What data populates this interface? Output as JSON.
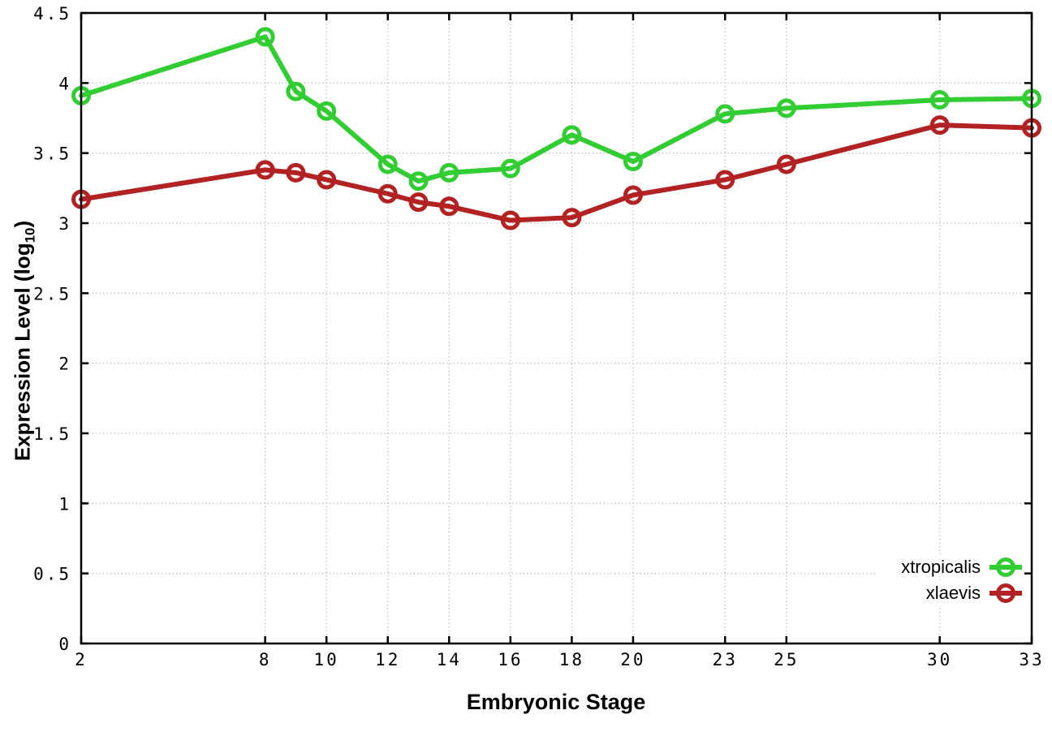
{
  "figure": {
    "background": "#ffffff",
    "xlabel": "Embryonic Stage",
    "ylabel": {
      "prefix": "Expression Level (log",
      "subscript": "10",
      "suffix": ")"
    }
  },
  "chart_data": {
    "type": "line",
    "title": "",
    "xlabel": "Embryonic Stage",
    "ylabel": "Expression Level (log10)",
    "x": [
      2,
      8,
      9,
      10,
      12,
      13,
      14,
      16,
      18,
      20,
      23,
      25,
      30,
      33
    ],
    "series": [
      {
        "name": "xtropicalis",
        "color": "#32cd32",
        "marker": "open-circle",
        "values": [
          3.91,
          4.33,
          3.94,
          3.8,
          3.42,
          3.3,
          3.36,
          3.39,
          3.63,
          3.44,
          3.78,
          3.82,
          3.88,
          3.89
        ]
      },
      {
        "name": "xlaevis",
        "color": "#b22222",
        "marker": "open-circle",
        "values": [
          3.17,
          3.38,
          3.36,
          3.31,
          3.21,
          3.15,
          3.12,
          3.02,
          3.04,
          3.2,
          3.31,
          3.42,
          3.7,
          3.68
        ]
      }
    ],
    "xlim": [
      2,
      33
    ],
    "ylim": [
      0,
      4.5
    ],
    "xticks": {
      "values": [
        2,
        8,
        10,
        12,
        14,
        16,
        18,
        20,
        23,
        25,
        30,
        33
      ],
      "labels": [
        "2",
        "8",
        "10",
        "12",
        "14",
        "16",
        "18",
        "20",
        "23",
        "25",
        "30",
        "33"
      ]
    },
    "yticks": {
      "values": [
        0,
        0.5,
        1,
        1.5,
        2,
        2.5,
        3,
        3.5,
        4,
        4.5
      ],
      "labels": [
        "0",
        "0.5",
        "1",
        "1.5",
        "2",
        "2.5",
        "3",
        "3.5",
        "4",
        "4.5"
      ]
    },
    "grid": true,
    "grid_style": "dotted",
    "grid_color": "#c3c3c3",
    "axis_color": "#000000",
    "legend_position": "bottom-right"
  }
}
